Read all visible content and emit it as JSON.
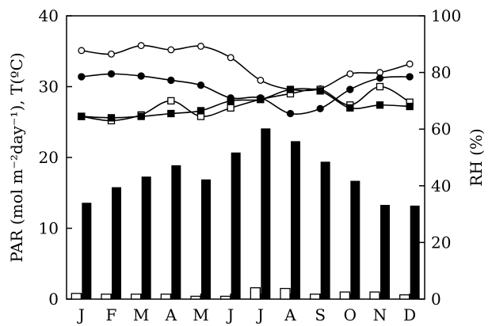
{
  "chart_data": {
    "type": "bar",
    "categories": [
      "J",
      "F",
      "M",
      "A",
      "M",
      "J",
      "J",
      "A",
      "S",
      "O",
      "N",
      "D"
    ],
    "ylabel_left": "PAR (mol m⁻²day⁻¹), T(ºC)",
    "ylabel_right": "RH (%)",
    "ylim_left": [
      0,
      40
    ],
    "ylim_right": [
      0,
      100
    ],
    "yticks_left": [
      "0",
      "10",
      "20",
      "30",
      "40"
    ],
    "yticks_right": [
      "0",
      "20",
      "40",
      "60",
      "80",
      "100"
    ],
    "grid": false,
    "legend": "none",
    "series": [
      {
        "type": "bar",
        "axis": "left",
        "color": "#000000",
        "values": [
          13.6,
          15.8,
          17.3,
          18.9,
          16.9,
          20.7,
          24.1,
          22.3,
          19.4,
          16.7,
          13.3,
          13.2
        ]
      },
      {
        "type": "bar",
        "axis": "left",
        "color": "#ffffff",
        "values": [
          0.8,
          0.7,
          0.7,
          0.7,
          0.4,
          0.4,
          1.6,
          1.5,
          0.7,
          1.0,
          1.0,
          0.6
        ]
      },
      {
        "type": "line",
        "marker": "open-circle",
        "axis": "left",
        "values": [
          35.1,
          34.6,
          35.8,
          35.2,
          35.7,
          34.1,
          30.9,
          29.6,
          29.7,
          31.8,
          32.0,
          33.2
        ]
      },
      {
        "type": "line",
        "marker": "filled-circle",
        "axis": "left",
        "values": [
          31.4,
          31.8,
          31.5,
          30.9,
          30.2,
          28.4,
          28.4,
          26.2,
          26.9,
          29.6,
          31.2,
          31.4
        ]
      },
      {
        "type": "line",
        "marker": "open-square",
        "axis": "right",
        "values": [
          64.5,
          63.0,
          65.0,
          70.0,
          64.5,
          67.5,
          70.5,
          72.5,
          74.0,
          68.5,
          75.0,
          69.5
        ]
      },
      {
        "type": "line",
        "marker": "filled-square",
        "axis": "right",
        "values": [
          64.5,
          64.0,
          64.5,
          65.5,
          66.5,
          70.0,
          70.5,
          74.0,
          73.5,
          67.5,
          68.5,
          68.0
        ]
      }
    ]
  }
}
